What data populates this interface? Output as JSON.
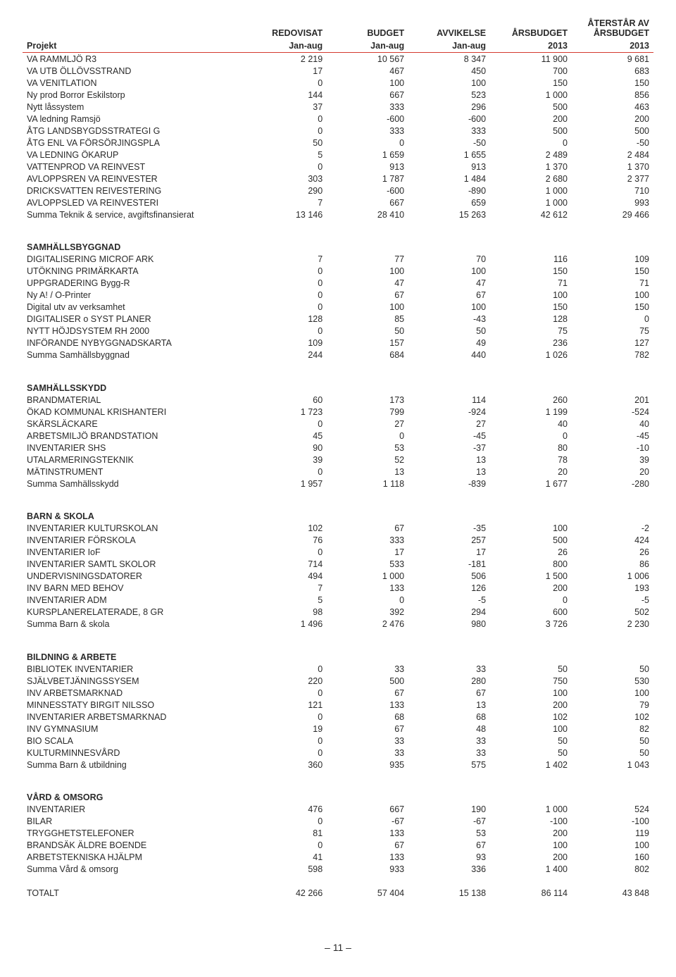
{
  "columns": {
    "project": "Projekt",
    "redovisat": "REDOVISAT",
    "budget": "BUDGET",
    "avvikelse": "AVVIKELSE",
    "arsbudget": "ÅRSBUDGET",
    "aterstar": "ÅTERSTÅR AV ÅRSBUDGET",
    "sub_redovisat": "Jan-aug",
    "sub_budget": "Jan-aug",
    "sub_avvikelse": "Jan-aug",
    "sub_arsbudget": "2013",
    "sub_aterstar": "2013"
  },
  "sections": [
    {
      "header": "",
      "rows": [
        {
          "label": "VA RAMMLJÖ R3",
          "c": [
            "2 219",
            "10 567",
            "8 347",
            "11 900",
            "9 681"
          ]
        },
        {
          "label": "VA UTB ÖLLÖVSSTRAND",
          "c": [
            "17",
            "467",
            "450",
            "700",
            "683"
          ]
        },
        {
          "label": "VA VENITLATION",
          "c": [
            "0",
            "100",
            "100",
            "150",
            "150"
          ]
        },
        {
          "label": "Ny prod Borror Eskilstorp",
          "c": [
            "144",
            "667",
            "523",
            "1 000",
            "856"
          ]
        },
        {
          "label": "Nytt låssystem",
          "c": [
            "37",
            "333",
            "296",
            "500",
            "463"
          ]
        },
        {
          "label": "VA ledning Ramsjö",
          "c": [
            "0",
            "-600",
            "-600",
            "200",
            "200"
          ]
        },
        {
          "label": "ÅTG LANDSBYGDSSTRATEGI G",
          "c": [
            "0",
            "333",
            "333",
            "500",
            "500"
          ]
        },
        {
          "label": "ÅTG ENL VA FÖRSÖRJINGSPLA",
          "c": [
            "50",
            "0",
            "-50",
            "0",
            "-50"
          ]
        },
        {
          "label": "VA LEDNING ÖKARUP",
          "c": [
            "5",
            "1 659",
            "1 655",
            "2 489",
            "2 484"
          ]
        },
        {
          "label": "VATTENPROD VA REINVEST",
          "c": [
            "0",
            "913",
            "913",
            "1 370",
            "1 370"
          ]
        },
        {
          "label": "AVLOPPSREN VA REINVESTER",
          "c": [
            "303",
            "1 787",
            "1 484",
            "2 680",
            "2 377"
          ]
        },
        {
          "label": "DRICKSVATTEN REIVESTERING",
          "c": [
            "290",
            "-600",
            "-890",
            "1 000",
            "710"
          ]
        },
        {
          "label": "AVLOPPSLED VA REINVESTERI",
          "c": [
            "7",
            "667",
            "659",
            "1 000",
            "993"
          ]
        }
      ],
      "summary": {
        "label": "Summa Teknik & service, avgiftsfinansierat",
        "c": [
          "13 146",
          "28 410",
          "15 263",
          "42 612",
          "29 466"
        ]
      }
    },
    {
      "header": "SAMHÄLLSBYGGNAD",
      "rows": [
        {
          "label": "DIGITALISERING MICROF ARK",
          "c": [
            "7",
            "77",
            "70",
            "116",
            "109"
          ]
        },
        {
          "label": "UTÖKNING PRIMÄRKARTA",
          "c": [
            "0",
            "100",
            "100",
            "150",
            "150"
          ]
        },
        {
          "label": "UPPGRADERING Bygg-R",
          "c": [
            "0",
            "47",
            "47",
            "71",
            "71"
          ]
        },
        {
          "label": "Ny A! / O-Printer",
          "c": [
            "0",
            "67",
            "67",
            "100",
            "100"
          ]
        },
        {
          "label": "Digital utv av verksamhet",
          "c": [
            "0",
            "100",
            "100",
            "150",
            "150"
          ]
        },
        {
          "label": "DIGITALISER o SYST PLANER",
          "c": [
            "128",
            "85",
            "-43",
            "128",
            "0"
          ]
        },
        {
          "label": "NYTT HÖJDSYSTEM RH 2000",
          "c": [
            "0",
            "50",
            "50",
            "75",
            "75"
          ]
        },
        {
          "label": "INFÖRANDE NYBYGGNADSKARTA",
          "c": [
            "109",
            "157",
            "49",
            "236",
            "127"
          ]
        }
      ],
      "summary": {
        "label": "Summa Samhällsbyggnad",
        "c": [
          "244",
          "684",
          "440",
          "1 026",
          "782"
        ]
      }
    },
    {
      "header": "SAMHÄLLSSKYDD",
      "rows": [
        {
          "label": "BRANDMATERIAL",
          "c": [
            "60",
            "173",
            "114",
            "260",
            "201"
          ]
        },
        {
          "label": "ÖKAD KOMMUNAL KRISHANTERI",
          "c": [
            "1 723",
            "799",
            "-924",
            "1 199",
            "-524"
          ]
        },
        {
          "label": "SKÄRSLÄCKARE",
          "c": [
            "0",
            "27",
            "27",
            "40",
            "40"
          ]
        },
        {
          "label": "ARBETSMILJÖ BRANDSTATION",
          "c": [
            "45",
            "0",
            "-45",
            "0",
            "-45"
          ]
        },
        {
          "label": "INVENTARIER SHS",
          "c": [
            "90",
            "53",
            "-37",
            "80",
            "-10"
          ]
        },
        {
          "label": "UTALARMERINGSTEKNIK",
          "c": [
            "39",
            "52",
            "13",
            "78",
            "39"
          ]
        },
        {
          "label": "MÄTINSTRUMENT",
          "c": [
            "0",
            "13",
            "13",
            "20",
            "20"
          ]
        }
      ],
      "summary": {
        "label": "Summa Samhällsskydd",
        "c": [
          "1 957",
          "1 118",
          "-839",
          "1 677",
          "-280"
        ]
      }
    },
    {
      "header": "BARN & SKOLA",
      "rows": [
        {
          "label": "INVENTARIER KULTURSKOLAN",
          "c": [
            "102",
            "67",
            "-35",
            "100",
            "-2"
          ]
        },
        {
          "label": "INVENTARIER FÖRSKOLA",
          "c": [
            "76",
            "333",
            "257",
            "500",
            "424"
          ]
        },
        {
          "label": "INVENTARIER IoF",
          "c": [
            "0",
            "17",
            "17",
            "26",
            "26"
          ]
        },
        {
          "label": "INVENTARIER SAMTL SKOLOR",
          "c": [
            "714",
            "533",
            "-181",
            "800",
            "86"
          ]
        },
        {
          "label": "UNDERVISNINGSDATORER",
          "c": [
            "494",
            "1 000",
            "506",
            "1 500",
            "1 006"
          ]
        },
        {
          "label": "INV BARN MED BEHOV",
          "c": [
            "7",
            "133",
            "126",
            "200",
            "193"
          ]
        },
        {
          "label": "INVENTARIER ADM",
          "c": [
            "5",
            "0",
            "-5",
            "0",
            "-5"
          ]
        },
        {
          "label": "KURSPLANERELATERADE, 8 GR",
          "c": [
            "98",
            "392",
            "294",
            "600",
            "502"
          ]
        }
      ],
      "summary": {
        "label": "Summa Barn & skola",
        "c": [
          "1 496",
          "2 476",
          "980",
          "3 726",
          "2 230"
        ]
      }
    },
    {
      "header": "BILDNING & ARBETE",
      "rows": [
        {
          "label": "BIBLIOTEK INVENTARIER",
          "c": [
            "0",
            "33",
            "33",
            "50",
            "50"
          ]
        },
        {
          "label": "SJÄLVBETJÄNINGSSYSEM",
          "c": [
            "220",
            "500",
            "280",
            "750",
            "530"
          ]
        },
        {
          "label": "INV ARBETSMARKNAD",
          "c": [
            "0",
            "67",
            "67",
            "100",
            "100"
          ]
        },
        {
          "label": "MINNESSTATY BIRGIT NILSSO",
          "c": [
            "121",
            "133",
            "13",
            "200",
            "79"
          ]
        },
        {
          "label": "INVENTARIER ARBETSMARKNAD",
          "c": [
            "0",
            "68",
            "68",
            "102",
            "102"
          ]
        },
        {
          "label": "INV GYMNASIUM",
          "c": [
            "19",
            "67",
            "48",
            "100",
            "82"
          ]
        },
        {
          "label": "BIO SCALA",
          "c": [
            "0",
            "33",
            "33",
            "50",
            "50"
          ]
        },
        {
          "label": "KULTURMINNESVÅRD",
          "c": [
            "0",
            "33",
            "33",
            "50",
            "50"
          ]
        }
      ],
      "summary": {
        "label": "Summa Barn & utbildning",
        "c": [
          "360",
          "935",
          "575",
          "1 402",
          "1 043"
        ]
      }
    },
    {
      "header": "VÅRD & OMSORG",
      "rows": [
        {
          "label": "INVENTARIER",
          "c": [
            "476",
            "667",
            "190",
            "1 000",
            "524"
          ]
        },
        {
          "label": "BILAR",
          "c": [
            "0",
            "-67",
            "-67",
            "-100",
            "-100"
          ]
        },
        {
          "label": "TRYGGHETSTELEFONER",
          "c": [
            "81",
            "133",
            "53",
            "200",
            "119"
          ]
        },
        {
          "label": "BRANDSÄK ÄLDRE BOENDE",
          "c": [
            "0",
            "67",
            "67",
            "100",
            "100"
          ]
        },
        {
          "label": "ARBETSTEKNISKA HJÄLPM",
          "c": [
            "41",
            "133",
            "93",
            "200",
            "160"
          ]
        }
      ],
      "summary": {
        "label": "Summa Vård & omsorg",
        "c": [
          "598",
          "933",
          "336",
          "1 400",
          "802"
        ]
      }
    }
  ],
  "total": {
    "label": "TOTALT",
    "c": [
      "42 266",
      "57 404",
      "15 138",
      "86 114",
      "43 848"
    ]
  },
  "page_number": "– 11 –"
}
